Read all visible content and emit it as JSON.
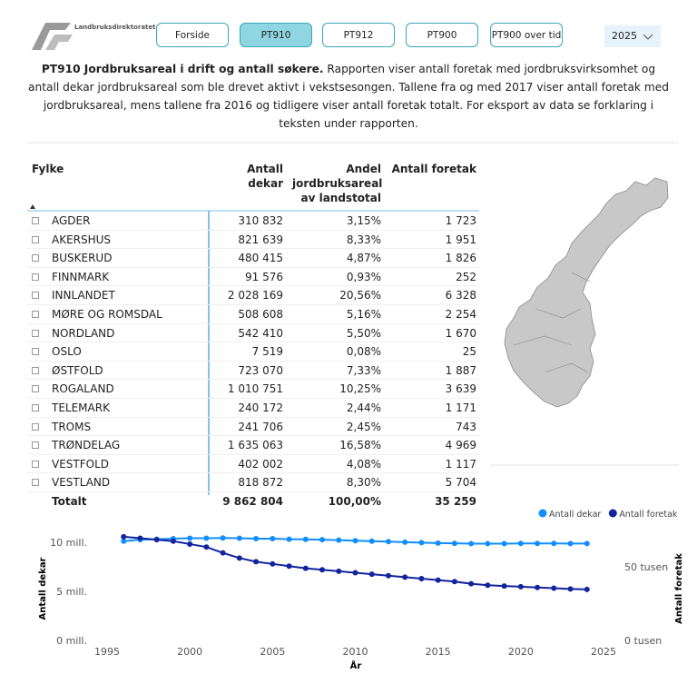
{
  "header": {
    "logo_text": "Landbruksdirektoratet"
  },
  "nav": {
    "buttons": [
      "Forside",
      "PT910",
      "PT912",
      "PT900",
      "PT900 over tid"
    ],
    "year": "2025"
  },
  "description": {
    "title": "PT910 Jordbruksareal i drift og antall søkere.",
    "text": "Rapporten viser antall foretak med jordbruksvirksomhet og antall dekar jordbruksareal som ble drevet aktivt i vekstsesongen. Tallene fra og med 2017 viser antall foretak med jordbruksareal, mens tallene fra 2016 og tidligere viser antall foretak totalt. For eksport av data se forklaring i teksten under rapporten."
  },
  "table": {
    "headers": [
      "Fylke",
      "Antall dekar",
      "Andel jordbruksareal av landstotal",
      "Antall foretak"
    ],
    "rows": [
      [
        "AGDER",
        "310 832",
        "3,15%",
        "1 723"
      ],
      [
        "AKERSHUS",
        "821 639",
        "8,33%",
        "1 951"
      ],
      [
        "BUSKERUD",
        "480 415",
        "4,87%",
        "1 826"
      ],
      [
        "FINNMARK",
        "91 576",
        "0,93%",
        "252"
      ],
      [
        "INNLANDET",
        "2 028 169",
        "20,56%",
        "6 328"
      ],
      [
        "MØRE OG ROMSDAL",
        "508 608",
        "5,16%",
        "2 254"
      ],
      [
        "NORDLAND",
        "542 410",
        "5,50%",
        "1 670"
      ],
      [
        "OSLO",
        "7 519",
        "0,08%",
        "25"
      ],
      [
        "ØSTFOLD",
        "723 070",
        "7,33%",
        "1 887"
      ],
      [
        "ROGALAND",
        "1 010 751",
        "10,25%",
        "3 639"
      ],
      [
        "TELEMARK",
        "240 172",
        "2,44%",
        "1 171"
      ],
      [
        "TROMS",
        "241 706",
        "2,45%",
        "743"
      ],
      [
        "TRØNDELAG",
        "1 635 063",
        "16,58%",
        "4 969"
      ],
      [
        "VESTFOLD",
        "402 002",
        "4,08%",
        "1 117"
      ],
      [
        "VESTLAND",
        "818 872",
        "8,30%",
        "5 704"
      ]
    ],
    "total": [
      "Totalt",
      "9 862 804",
      "100,00%",
      "35 259"
    ]
  },
  "chart_data": {
    "type": "line",
    "x_label": "År",
    "y_label": "Antall dekar",
    "y2_label": "Antall foretak",
    "x": [
      1996,
      1997,
      1998,
      1999,
      2000,
      2001,
      2002,
      2003,
      2004,
      2005,
      2006,
      2007,
      2008,
      2009,
      2010,
      2011,
      2012,
      2013,
      2014,
      2015,
      2016,
      2017,
      2018,
      2019,
      2020,
      2021,
      2022,
      2023,
      2024
    ],
    "series": [
      {
        "name": "Antall dekar",
        "color": "#118dff",
        "axis": "y",
        "values": [
          10100000,
          10250000,
          10300000,
          10350000,
          10400000,
          10400000,
          10420000,
          10400000,
          10350000,
          10350000,
          10300000,
          10280000,
          10250000,
          10200000,
          10150000,
          10100000,
          10050000,
          10000000,
          9950000,
          9900000,
          9880000,
          9850000,
          9850000,
          9850000,
          9870000,
          9870000,
          9870000,
          9860000,
          9860000
        ]
      },
      {
        "name": "Antall foretak",
        "color": "#12239e",
        "axis": "y2",
        "values": [
          70500,
          69500,
          68500,
          67500,
          65500,
          63500,
          59500,
          56000,
          53500,
          52000,
          50500,
          49000,
          48000,
          47000,
          46000,
          45000,
          44000,
          43000,
          42000,
          41000,
          40000,
          38500,
          37500,
          37000,
          36500,
          36000,
          35500,
          35000,
          34700
        ]
      }
    ],
    "xlim": [
      1995,
      2025
    ],
    "xticks": [
      1995,
      2000,
      2005,
      2010,
      2015,
      2020,
      2025
    ],
    "ylim": [
      0,
      11000000
    ],
    "yticks": [
      {
        "value": 0,
        "label": "0 mill."
      },
      {
        "value": 5000000,
        "label": "5 mill."
      },
      {
        "value": 10000000,
        "label": "10 mill."
      }
    ],
    "y2lim": [
      0,
      73500
    ],
    "y2ticks": [
      {
        "value": 0,
        "label": "0 tusen"
      },
      {
        "value": 50000,
        "label": "50 tusen"
      }
    ],
    "legend": "top-right",
    "grid": false
  }
}
